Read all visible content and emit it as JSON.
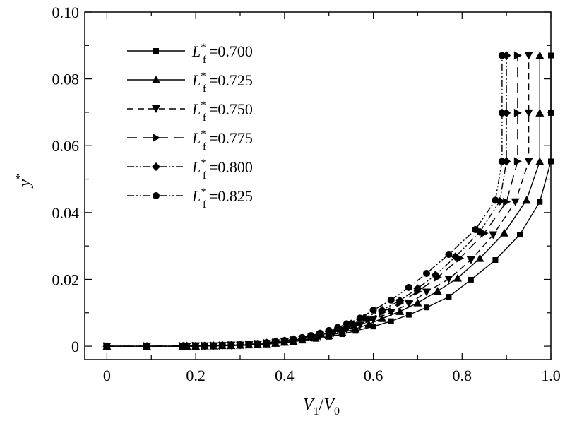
{
  "chart_data": {
    "type": "line",
    "xlabel": {
      "main": "V",
      "sub1": "1",
      "slash": "/",
      "main2": "V",
      "sub2": "0"
    },
    "ylabel": {
      "main": "y",
      "sup": "*"
    },
    "xlim": [
      -0.05,
      1.0
    ],
    "ylim": [
      -0.004,
      0.1
    ],
    "xticks": [
      0,
      0.2,
      0.4,
      0.6,
      0.8,
      1.0
    ],
    "xtick_labels": [
      "0",
      "0.2",
      "0.4",
      "0.6",
      "0.8",
      "1.0"
    ],
    "yticks": [
      0,
      0.02,
      0.04,
      0.06,
      0.08,
      0.1
    ],
    "ytick_labels": [
      "0",
      "0.02",
      "0.04",
      "0.06",
      "0.08",
      "0.10"
    ],
    "legend_position": "top-left",
    "series": [
      {
        "name": "Lf*=0.700",
        "label": {
          "main": "L",
          "sub": "f",
          "sup": "*",
          "value": "=0.700"
        },
        "marker": "square",
        "dash": "none",
        "x": [
          0.0,
          0.09,
          0.171,
          0.18,
          0.2,
          0.22,
          0.24,
          0.26,
          0.28,
          0.3,
          0.32,
          0.34,
          0.36,
          0.38,
          0.4,
          0.42,
          0.44,
          0.47,
          0.5,
          0.53,
          0.56,
          0.6,
          0.64,
          0.68,
          0.72,
          0.77,
          0.82,
          0.875,
          0.93,
          0.975,
          1.0,
          1.0,
          1.0
        ],
        "y": [
          0.0,
          0.0,
          0.0,
          0.0,
          0.0,
          0.0,
          0.0001,
          0.0001,
          0.0002,
          0.0002,
          0.0003,
          0.0005,
          0.0006,
          0.0008,
          0.0011,
          0.0014,
          0.0017,
          0.0022,
          0.0028,
          0.0036,
          0.0046,
          0.0059,
          0.0075,
          0.0094,
          0.0116,
          0.0148,
          0.0199,
          0.0258,
          0.0334,
          0.0432,
          0.0553,
          0.0698,
          0.087
        ]
      },
      {
        "name": "Lf*=0.725",
        "label": {
          "main": "L",
          "sub": "f",
          "sup": "*",
          "value": "=0.725"
        },
        "marker": "triangle-up",
        "dash": "none",
        "x": [
          0.0,
          0.09,
          0.171,
          0.18,
          0.2,
          0.22,
          0.24,
          0.26,
          0.28,
          0.3,
          0.32,
          0.34,
          0.36,
          0.38,
          0.4,
          0.42,
          0.44,
          0.47,
          0.5,
          0.53,
          0.56,
          0.59,
          0.62,
          0.66,
          0.7,
          0.745,
          0.79,
          0.84,
          0.895,
          0.945,
          0.975,
          0.975,
          0.975
        ],
        "y": [
          0.0,
          0.0,
          0.0,
          0.0,
          0.0,
          0.0001,
          0.0001,
          0.0002,
          0.0002,
          0.0003,
          0.0004,
          0.0005,
          0.0007,
          0.0009,
          0.0012,
          0.0015,
          0.0019,
          0.0025,
          0.0032,
          0.0041,
          0.0052,
          0.0066,
          0.0083,
          0.0104,
          0.013,
          0.0165,
          0.0204,
          0.0263,
          0.0339,
          0.0437,
          0.0553,
          0.0698,
          0.087
        ]
      },
      {
        "name": "Lf*=0.750",
        "label": {
          "main": "L",
          "sub": "f",
          "sup": "*",
          "value": "=0.750"
        },
        "marker": "triangle-down",
        "dash": "dashed",
        "x": [
          0.0,
          0.09,
          0.171,
          0.18,
          0.2,
          0.22,
          0.24,
          0.26,
          0.28,
          0.3,
          0.32,
          0.34,
          0.36,
          0.38,
          0.4,
          0.42,
          0.44,
          0.46,
          0.48,
          0.51,
          0.54,
          0.57,
          0.6,
          0.64,
          0.68,
          0.72,
          0.77,
          0.82,
          0.87,
          0.92,
          0.95,
          0.95,
          0.95
        ],
        "y": [
          0.0,
          0.0,
          0.0,
          0.0,
          0.0001,
          0.0001,
          0.0001,
          0.0002,
          0.0003,
          0.0003,
          0.0004,
          0.0006,
          0.0008,
          0.001,
          0.0013,
          0.0016,
          0.002,
          0.0024,
          0.003,
          0.0039,
          0.005,
          0.0063,
          0.008,
          0.0101,
          0.0127,
          0.0162,
          0.0201,
          0.0258,
          0.0333,
          0.0432,
          0.0553,
          0.0698,
          0.087
        ]
      },
      {
        "name": "Lf*=0.775",
        "label": {
          "main": "L",
          "sub": "f",
          "sup": "*",
          "value": "=0.775"
        },
        "marker": "triangle-right",
        "dash": "long-dashed",
        "x": [
          0.0,
          0.09,
          0.171,
          0.18,
          0.2,
          0.22,
          0.24,
          0.26,
          0.28,
          0.3,
          0.32,
          0.34,
          0.36,
          0.38,
          0.4,
          0.42,
          0.44,
          0.46,
          0.48,
          0.5,
          0.53,
          0.56,
          0.59,
          0.62,
          0.66,
          0.7,
          0.745,
          0.795,
          0.85,
          0.9,
          0.925,
          0.925,
          0.925
        ],
        "y": [
          0.0,
          0.0,
          0.0,
          0.0001,
          0.0001,
          0.0001,
          0.0002,
          0.0002,
          0.0003,
          0.0004,
          0.0005,
          0.0007,
          0.0009,
          0.0011,
          0.0014,
          0.0018,
          0.0022,
          0.0027,
          0.0033,
          0.004,
          0.0051,
          0.0065,
          0.0081,
          0.0102,
          0.0129,
          0.0164,
          0.0206,
          0.0263,
          0.0338,
          0.0432,
          0.0553,
          0.0698,
          0.087
        ]
      },
      {
        "name": "Lf*=0.800",
        "label": {
          "main": "L",
          "sub": "f",
          "sup": "*",
          "value": "=0.800"
        },
        "marker": "diamond",
        "dash": "dash-dot-dot",
        "x": [
          0.0,
          0.09,
          0.171,
          0.18,
          0.2,
          0.22,
          0.24,
          0.26,
          0.28,
          0.3,
          0.32,
          0.34,
          0.36,
          0.38,
          0.4,
          0.42,
          0.44,
          0.46,
          0.48,
          0.5,
          0.52,
          0.55,
          0.58,
          0.62,
          0.66,
          0.7,
          0.74,
          0.785,
          0.84,
          0.885,
          0.9,
          0.9,
          0.9
        ],
        "y": [
          0.0,
          0.0,
          0.0,
          0.0001,
          0.0001,
          0.0001,
          0.0002,
          0.0003,
          0.0003,
          0.0004,
          0.0006,
          0.0007,
          0.001,
          0.0012,
          0.0016,
          0.002,
          0.0024,
          0.003,
          0.0036,
          0.0044,
          0.0052,
          0.0067,
          0.0085,
          0.0108,
          0.0137,
          0.0173,
          0.0213,
          0.0268,
          0.0342,
          0.0434,
          0.0553,
          0.0698,
          0.087
        ]
      },
      {
        "name": "Lf*=0.825",
        "label": {
          "main": "L",
          "sub": "f",
          "sup": "*",
          "value": "=0.825"
        },
        "marker": "circle",
        "dash": "dash-dot-dot",
        "x": [
          0.0,
          0.09,
          0.171,
          0.18,
          0.2,
          0.22,
          0.24,
          0.26,
          0.28,
          0.3,
          0.32,
          0.34,
          0.36,
          0.38,
          0.4,
          0.42,
          0.44,
          0.46,
          0.48,
          0.5,
          0.52,
          0.54,
          0.57,
          0.6,
          0.64,
          0.68,
          0.72,
          0.77,
          0.83,
          0.875,
          0.89,
          0.89,
          0.89
        ],
        "y": [
          0.0,
          0.0,
          0.0001,
          0.0001,
          0.0001,
          0.0002,
          0.0002,
          0.0003,
          0.0004,
          0.0005,
          0.0006,
          0.0008,
          0.0011,
          0.0014,
          0.0017,
          0.0021,
          0.0026,
          0.0032,
          0.0039,
          0.0047,
          0.0056,
          0.0067,
          0.0084,
          0.0108,
          0.0138,
          0.0176,
          0.0218,
          0.0275,
          0.0349,
          0.0437,
          0.0553,
          0.0698,
          0.087
        ]
      }
    ]
  }
}
